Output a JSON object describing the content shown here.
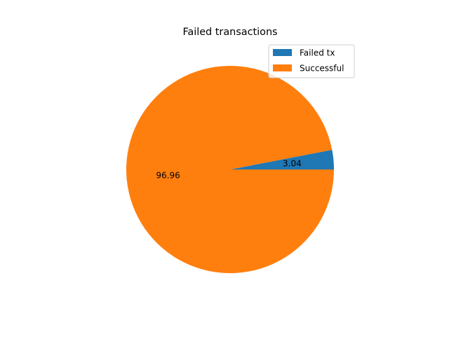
{
  "chart_data": {
    "type": "pie",
    "title": "Failed transactions",
    "slices": [
      {
        "label": "Failed tx",
        "value": 3.04,
        "color": "#1f77b4"
      },
      {
        "label": "Successful",
        "value": 96.96,
        "color": "#ff7f0e"
      }
    ],
    "value_labels": [
      "3.04",
      "96.96"
    ],
    "legend_position": "upper right"
  }
}
